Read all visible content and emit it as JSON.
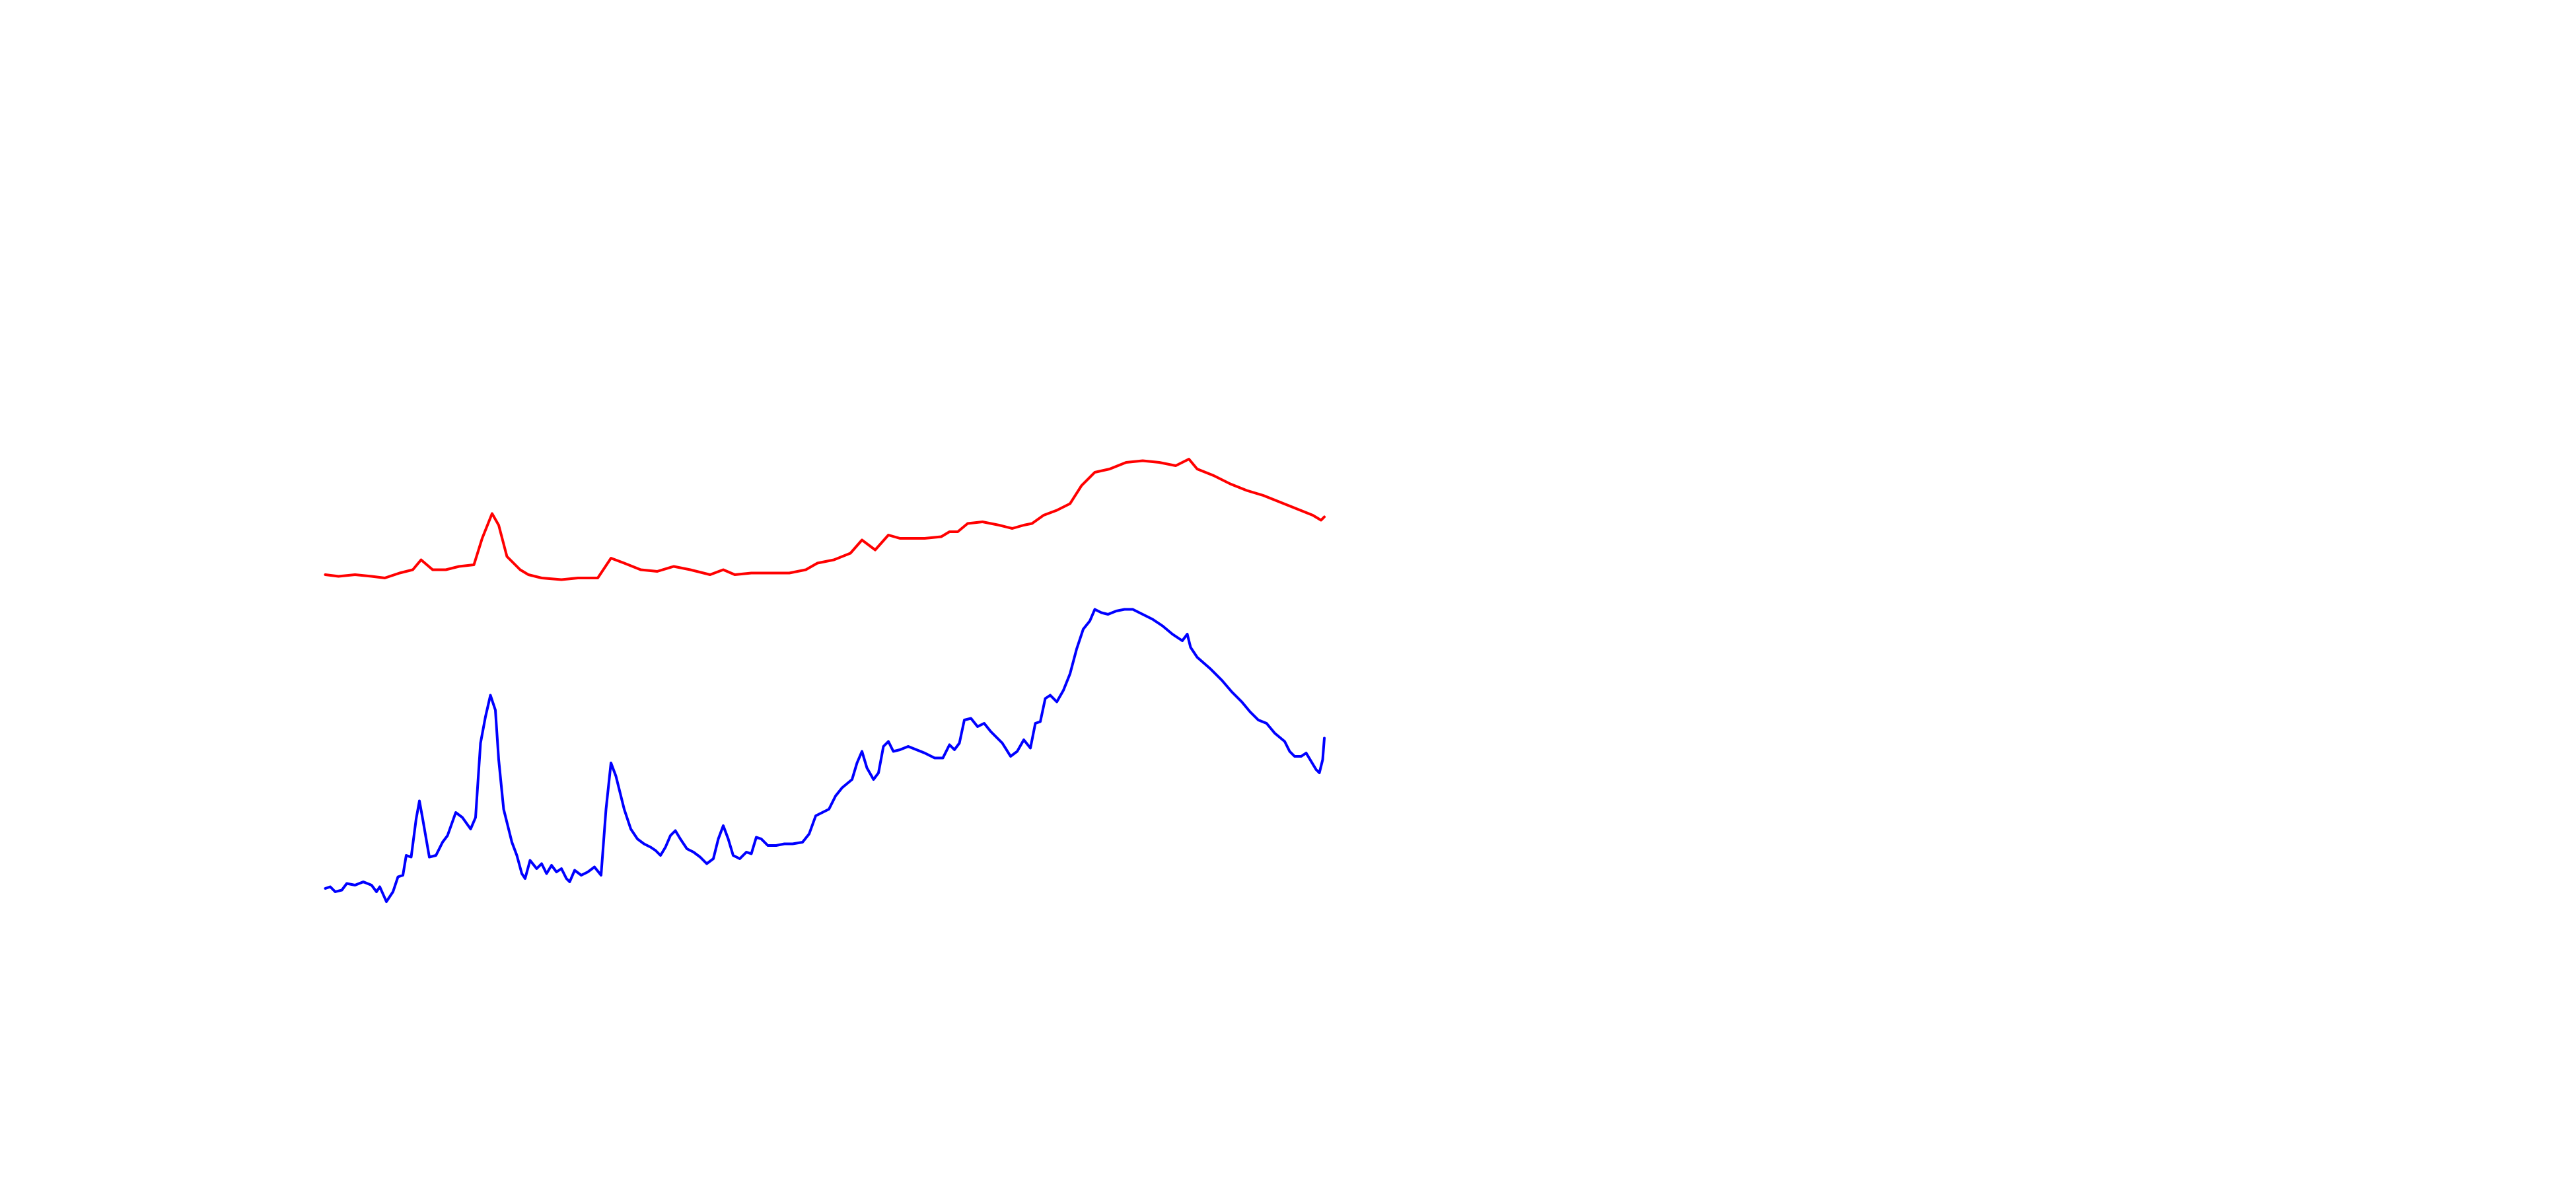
{
  "chart_data": {
    "type": "line",
    "xlim": [
      0,
      1560
    ],
    "ylim": [
      0,
      720
    ],
    "series": [
      {
        "color": "#ff0000",
        "x": [
          197,
          205,
          215,
          225,
          233,
          242,
          250,
          255,
          262,
          270,
          278,
          287,
          292,
          298,
          302,
          307,
          315,
          320,
          328,
          340,
          350,
          362,
          370,
          378,
          388,
          398,
          408,
          418,
          430,
          438,
          445,
          455,
          465,
          478,
          488,
          495,
          505,
          515,
          522,
          530,
          538,
          545,
          560,
          570,
          575,
          580,
          586,
          595,
          605,
          613,
          620,
          625,
          632,
          640,
          648,
          655,
          663,
          672,
          682,
          692,
          702,
          712,
          720,
          725,
          735,
          745,
          755,
          765,
          775,
          780,
          785,
          795,
          800,
          802
        ],
        "values": [
          372,
          371,
          372,
          371,
          370,
          373,
          375,
          381,
          375,
          375,
          377,
          378,
          394,
          409,
          402,
          383,
          375,
          372,
          370,
          369,
          370,
          370,
          382,
          379,
          375,
          374,
          377,
          375,
          372,
          375,
          372,
          373,
          373,
          373,
          375,
          379,
          381,
          385,
          393,
          387,
          396,
          394,
          394,
          395,
          398,
          398,
          403,
          404,
          402,
          400,
          402,
          403,
          408,
          411,
          415,
          426,
          434,
          436,
          440,
          441,
          440,
          438,
          442,
          436,
          432,
          427,
          423,
          420,
          416,
          414,
          412,
          408,
          405,
          407
        ]
      },
      {
        "color": "#0000ff",
        "x": [
          197,
          200,
          203,
          207,
          210,
          215,
          220,
          225,
          228,
          230,
          234,
          238,
          241,
          244,
          246,
          249,
          252,
          254,
          256,
          260,
          264,
          268,
          271,
          276,
          280,
          285,
          288,
          291,
          294,
          297,
          300,
          302,
          305,
          310,
          313,
          316,
          318,
          321,
          325,
          328,
          331,
          334,
          337,
          340,
          343,
          345,
          348,
          352,
          356,
          360,
          364,
          367,
          370,
          373,
          378,
          382,
          386,
          390,
          394,
          397,
          400,
          403,
          406,
          409,
          412,
          416,
          420,
          424,
          428,
          432,
          435,
          438,
          441,
          444,
          448,
          452,
          455,
          458,
          461,
          465,
          470,
          475,
          480,
          486,
          490,
          494,
          498,
          502,
          506,
          510,
          516,
          519,
          522,
          525,
          529,
          532,
          535,
          538,
          541,
          545,
          550,
          555,
          560,
          566,
          571,
          575,
          578,
          581,
          584,
          588,
          592,
          596,
          600,
          604,
          607,
          612,
          616,
          620,
          624,
          627,
          630,
          633,
          636,
          640,
          644,
          648,
          652,
          656,
          660,
          663,
          667,
          671,
          676,
          681,
          686,
          692,
          698,
          704,
          710,
          716,
          719,
          721,
          725,
          733,
          740,
          746,
          752,
          757,
          762,
          767,
          772,
          778,
          781,
          784,
          788,
          791,
          794,
          797,
          799,
          801,
          802
        ],
        "values": [
          182,
          183,
          180,
          181,
          185,
          184,
          186,
          184,
          180,
          183,
          174,
          180,
          189,
          190,
          202,
          201,
          224,
          235,
          224,
          201,
          202,
          210,
          214,
          228,
          225,
          218,
          225,
          270,
          286,
          299,
          290,
          260,
          230,
          210,
          202,
          191,
          188,
          199,
          194,
          197,
          191,
          196,
          192,
          194,
          188,
          186,
          193,
          190,
          192,
          195,
          190,
          230,
          258,
          250,
          230,
          218,
          212,
          209,
          207,
          205,
          202,
          207,
          214,
          217,
          212,
          206,
          204,
          201,
          197,
          200,
          212,
          220,
          212,
          202,
          200,
          204,
          203,
          213,
          212,
          208,
          208,
          209,
          209,
          210,
          215,
          226,
          228,
          230,
          238,
          243,
          248,
          258,
          265,
          255,
          248,
          252,
          268,
          271,
          265,
          266,
          268,
          266,
          264,
          261,
          261,
          269,
          266,
          270,
          284,
          285,
          280,
          282,
          277,
          273,
          270,
          262,
          265,
          272,
          267,
          282,
          283,
          297,
          299,
          295,
          302,
          312,
          327,
          339,
          344,
          351,
          349,
          348,
          350,
          351,
          351,
          348,
          345,
          341,
          336,
          332,
          336,
          328,
          322,
          315,
          308,
          301,
          295,
          289,
          284,
          282,
          276,
          271,
          265,
          262,
          262,
          264,
          259,
          254,
          252,
          260,
          273
        ]
      }
    ]
  }
}
